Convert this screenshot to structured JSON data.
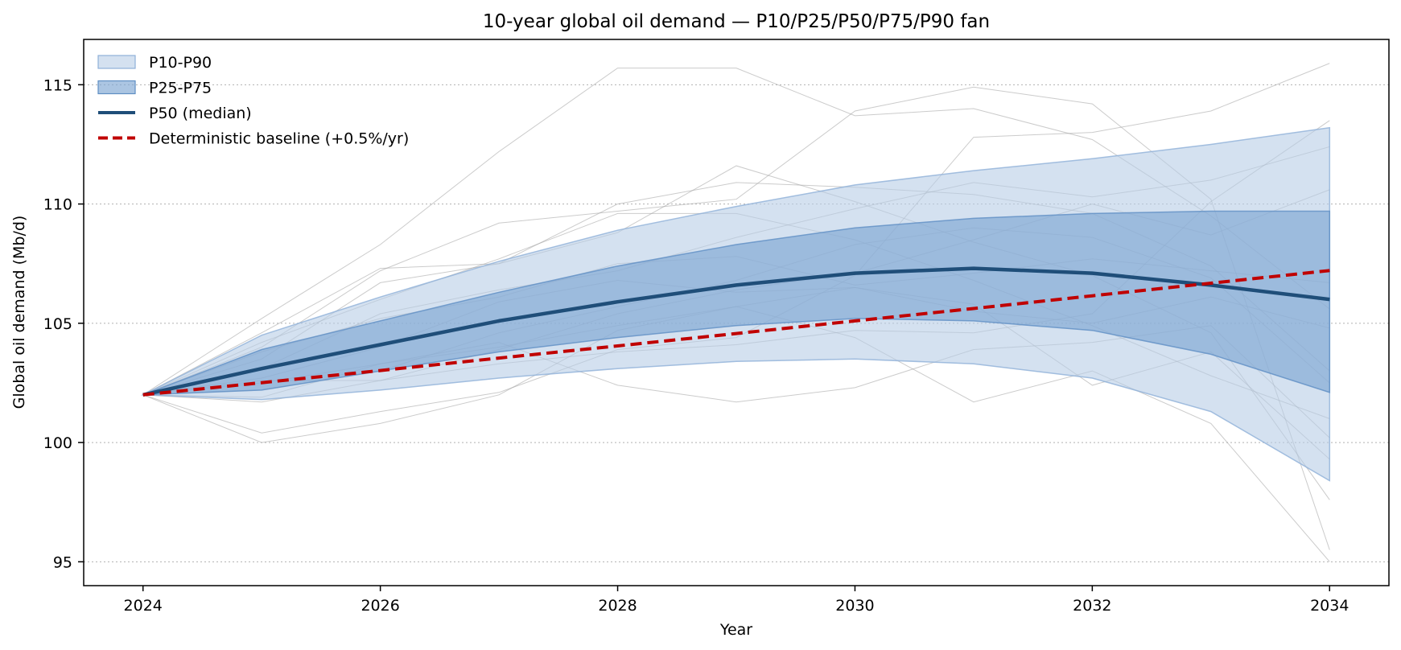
{
  "chart_data": {
    "type": "area",
    "title": "10-year global oil demand — P10/P25/P50/P75/P90 fan",
    "xlabel": "Year",
    "ylabel": "Global oil demand  (Mb/d)",
    "x": [
      2024,
      2025,
      2026,
      2027,
      2028,
      2029,
      2030,
      2031,
      2032,
      2033,
      2034
    ],
    "xlim": [
      2023.5,
      2034.5
    ],
    "ylim": [
      94.0,
      116.9
    ],
    "xticks": [
      2024,
      2026,
      2028,
      2030,
      2032,
      2034
    ],
    "yticks": [
      95,
      100,
      105,
      110,
      115
    ],
    "grid": "y-dotted",
    "legend_position": "top-left",
    "colors": {
      "band_outer": "#b8cde6",
      "band_inner": "#7ea6d3",
      "median": "#1f4e79",
      "baseline": "#c00000",
      "paths": "#a0a0a0"
    },
    "bands": [
      {
        "name": "P10-P90",
        "lower": [
          102.0,
          101.8,
          102.2,
          102.7,
          103.1,
          103.4,
          103.5,
          103.3,
          102.7,
          101.3,
          98.4
        ],
        "upper": [
          102.0,
          104.5,
          106.1,
          107.6,
          108.9,
          109.9,
          110.8,
          111.4,
          111.9,
          112.5,
          113.2
        ]
      },
      {
        "name": "P25-P75",
        "lower": [
          102.0,
          102.2,
          103.0,
          103.8,
          104.4,
          104.9,
          105.2,
          105.1,
          104.7,
          103.7,
          102.1
        ],
        "upper": [
          102.0,
          103.9,
          105.1,
          106.3,
          107.4,
          108.3,
          109.0,
          109.4,
          109.6,
          109.7,
          109.7
        ]
      }
    ],
    "series": [
      {
        "name": "P50 (median)",
        "style": "solid",
        "values": [
          102.0,
          103.1,
          104.1,
          105.1,
          105.9,
          106.6,
          107.1,
          107.3,
          107.1,
          106.6,
          106.0
        ]
      },
      {
        "name": "Deterministic baseline (+0.5%/yr)",
        "style": "dashed",
        "values": [
          102.0,
          102.51,
          103.02,
          103.54,
          104.05,
          104.57,
          105.1,
          105.62,
          106.15,
          106.68,
          107.21
        ]
      }
    ],
    "sample_paths": [
      [
        102.0,
        105.2,
        108.3,
        112.2,
        115.7,
        115.7,
        113.7,
        114.0,
        112.7,
        109.5,
        105.6
      ],
      [
        102.0,
        104.0,
        107.2,
        109.2,
        109.7,
        110.2,
        113.9,
        114.9,
        114.2,
        110.2,
        95.5
      ],
      [
        102.0,
        100.4,
        101.3,
        102.1,
        103.9,
        104.4,
        107.0,
        112.8,
        113.0,
        113.9,
        115.9
      ],
      [
        102.0,
        103.5,
        106.7,
        107.5,
        108.8,
        111.6,
        110.1,
        108.4,
        107.0,
        104.6,
        97.6
      ],
      [
        102.0,
        101.7,
        102.6,
        103.3,
        103.8,
        104.1,
        104.7,
        104.6,
        105.4,
        110.1,
        113.5
      ],
      [
        102.0,
        104.6,
        107.3,
        107.5,
        110.0,
        110.9,
        110.7,
        110.4,
        109.6,
        107.4,
        103.0
      ],
      [
        102.0,
        102.5,
        103.3,
        104.2,
        102.4,
        101.7,
        102.3,
        103.9,
        104.2,
        104.9,
        100.2
      ],
      [
        102.0,
        100.0,
        100.8,
        102.0,
        104.7,
        105.7,
        106.5,
        105.8,
        102.4,
        103.8,
        99.3
      ],
      [
        102.0,
        103.1,
        105.4,
        106.4,
        107.2,
        108.6,
        109.8,
        110.9,
        110.3,
        111.0,
        112.4
      ],
      [
        102.0,
        102.7,
        104.0,
        105.9,
        106.8,
        106.3,
        106.5,
        105.5,
        105.0,
        106.1,
        104.8
      ],
      [
        102.0,
        101.9,
        103.3,
        104.0,
        104.9,
        105.7,
        104.4,
        101.7,
        103.0,
        100.8,
        95.0
      ],
      [
        102.0,
        103.8,
        105.2,
        106.1,
        107.5,
        107.8,
        106.6,
        107.1,
        107.7,
        107.2,
        106.7
      ],
      [
        102.0,
        102.2,
        103.0,
        104.6,
        105.7,
        106.8,
        108.3,
        109.0,
        108.6,
        106.9,
        102.5
      ],
      [
        102.0,
        104.2,
        106.0,
        107.7,
        109.6,
        109.6,
        108.5,
        106.8,
        104.9,
        102.8,
        101.0
      ],
      [
        102.0,
        102.6,
        102.6,
        103.9,
        105.4,
        106.4,
        107.1,
        108.5,
        110.0,
        108.7,
        110.6
      ]
    ]
  }
}
